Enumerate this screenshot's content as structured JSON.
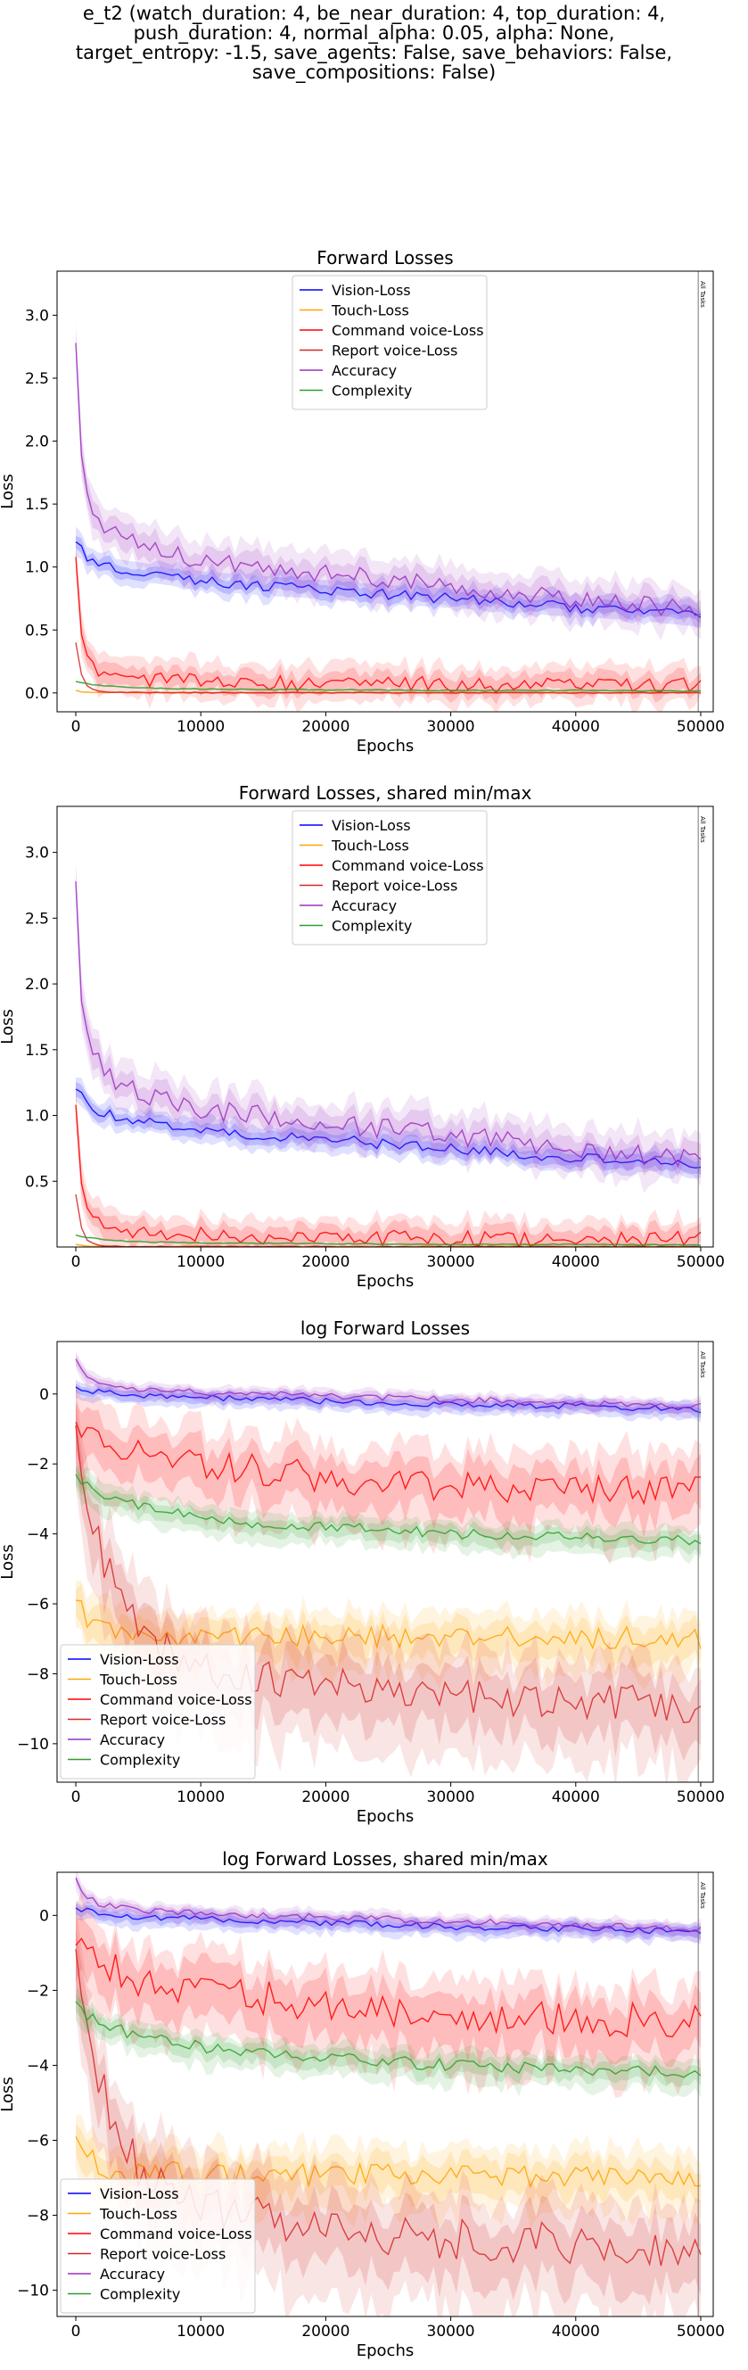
{
  "figure_title": [
    "e_t2 (watch_duration: 4, be_near_duration: 4, top_duration: 4,",
    "push_duration: 4, normal_alpha: 0.05, alpha: None,",
    "target_entropy: -1.5, save_agents: False, save_behaviors: False,",
    "save_compositions: False)"
  ],
  "chart_data": [
    {
      "type": "line",
      "title": "Forward Losses",
      "xlabel": "Epochs",
      "ylabel": "Loss",
      "xlim": [
        -1500,
        51000
      ],
      "ylim": [
        -0.15,
        3.35
      ],
      "xticks": [
        0,
        10000,
        20000,
        30000,
        40000,
        50000
      ],
      "yticks": [
        0.0,
        0.5,
        1.0,
        1.5,
        2.0,
        2.5,
        3.0
      ],
      "ytick_labels": [
        "0.0",
        "0.5",
        "1.0",
        "1.5",
        "2.0",
        "2.5",
        "3.0"
      ],
      "vline": {
        "x": 49800,
        "label": "All Tasks"
      },
      "grid": false,
      "legend": "upper-center",
      "log": false,
      "series": [
        {
          "name": "Vision-Loss",
          "color": "#0000ff",
          "x": [
            0,
            1000,
            3000,
            6000,
            10000,
            15000,
            20000,
            25000,
            30000,
            35000,
            40000,
            45000,
            50000
          ],
          "y": [
            1.2,
            1.07,
            0.99,
            0.95,
            0.89,
            0.85,
            0.82,
            0.78,
            0.75,
            0.71,
            0.68,
            0.65,
            0.6
          ]
        },
        {
          "name": "Touch-Loss",
          "color": "#ffa500",
          "x": [
            0,
            500,
            1000,
            2000,
            5000,
            10000,
            20000,
            30000,
            40000,
            50000
          ],
          "y": [
            0.02,
            0.01,
            0.005,
            0.004,
            0.003,
            0.003,
            0.003,
            0.003,
            0.003,
            0.003
          ]
        },
        {
          "name": "Command voice-Loss",
          "color": "#ff0000",
          "x": [
            0,
            500,
            1000,
            2000,
            3000,
            5000,
            8000,
            10000,
            15000,
            20000,
            25000,
            30000,
            35000,
            40000,
            45000,
            50000
          ],
          "y": [
            1.08,
            0.36,
            0.24,
            0.17,
            0.14,
            0.12,
            0.1,
            0.09,
            0.08,
            0.075,
            0.07,
            0.065,
            0.06,
            0.058,
            0.058,
            0.06
          ]
        },
        {
          "name": "Report voice-Loss",
          "color": "#d62728",
          "x": [
            0,
            500,
            1000,
            2000,
            3000,
            5000,
            10000,
            20000,
            30000,
            40000,
            50000
          ],
          "y": [
            0.4,
            0.12,
            0.04,
            0.01,
            0.005,
            0.003,
            0.002,
            0.001,
            0.001,
            0.001,
            0.001
          ]
        },
        {
          "name": "Accuracy",
          "color": "#9b30c0",
          "x": [
            0,
            500,
            1000,
            2000,
            3000,
            5000,
            8000,
            10000,
            15000,
            20000,
            25000,
            30000,
            35000,
            40000,
            45000,
            50000
          ],
          "y": [
            2.78,
            1.75,
            1.55,
            1.38,
            1.25,
            1.18,
            1.1,
            1.05,
            1.0,
            0.95,
            0.9,
            0.85,
            0.8,
            0.75,
            0.7,
            0.68
          ]
        },
        {
          "name": "Complexity",
          "color": "#2ca02c",
          "x": [
            0,
            1000,
            3000,
            5000,
            10000,
            20000,
            30000,
            40000,
            50000
          ],
          "y": [
            0.09,
            0.07,
            0.05,
            0.04,
            0.03,
            0.025,
            0.02,
            0.02,
            0.015
          ]
        }
      ]
    },
    {
      "type": "line",
      "title": "Forward Losses, shared min/max",
      "xlabel": "Epochs",
      "ylabel": "Loss",
      "xlim": [
        -1500,
        51000
      ],
      "ylim": [
        0.0,
        3.35
      ],
      "xticks": [
        0,
        10000,
        20000,
        30000,
        40000,
        50000
      ],
      "yticks": [
        0.5,
        1.0,
        1.5,
        2.0,
        2.5,
        3.0
      ],
      "ytick_labels": [
        "0.5",
        "1.0",
        "1.5",
        "2.0",
        "2.5",
        "3.0"
      ],
      "vline": {
        "x": 49800,
        "label": "All Tasks"
      },
      "grid": false,
      "legend": "upper-center",
      "log": false,
      "series": [
        {
          "name": "Vision-Loss",
          "color": "#0000ff",
          "x": [
            0,
            1000,
            3000,
            6000,
            10000,
            15000,
            20000,
            25000,
            30000,
            35000,
            40000,
            45000,
            50000
          ],
          "y": [
            1.2,
            1.07,
            0.99,
            0.95,
            0.89,
            0.85,
            0.82,
            0.78,
            0.75,
            0.71,
            0.68,
            0.65,
            0.6
          ]
        },
        {
          "name": "Touch-Loss",
          "color": "#ffa500",
          "x": [
            0,
            500,
            1000,
            2000,
            5000,
            10000,
            20000,
            30000,
            40000,
            50000
          ],
          "y": [
            0.02,
            0.01,
            0.005,
            0.004,
            0.003,
            0.003,
            0.003,
            0.003,
            0.003,
            0.003
          ]
        },
        {
          "name": "Command voice-Loss",
          "color": "#ff0000",
          "x": [
            0,
            500,
            1000,
            2000,
            3000,
            5000,
            8000,
            10000,
            15000,
            20000,
            25000,
            30000,
            35000,
            40000,
            45000,
            50000
          ],
          "y": [
            1.08,
            0.36,
            0.24,
            0.17,
            0.14,
            0.12,
            0.1,
            0.09,
            0.08,
            0.075,
            0.07,
            0.065,
            0.06,
            0.058,
            0.058,
            0.06
          ]
        },
        {
          "name": "Report voice-Loss",
          "color": "#d62728",
          "x": [
            0,
            500,
            1000,
            2000,
            3000,
            5000,
            10000,
            20000,
            30000,
            40000,
            50000
          ],
          "y": [
            0.4,
            0.12,
            0.04,
            0.01,
            0.005,
            0.003,
            0.002,
            0.001,
            0.001,
            0.001,
            0.001
          ]
        },
        {
          "name": "Accuracy",
          "color": "#9b30c0",
          "x": [
            0,
            500,
            1000,
            2000,
            3000,
            5000,
            8000,
            10000,
            15000,
            20000,
            25000,
            30000,
            35000,
            40000,
            45000,
            50000
          ],
          "y": [
            2.78,
            1.75,
            1.55,
            1.38,
            1.25,
            1.18,
            1.1,
            1.05,
            1.0,
            0.95,
            0.9,
            0.85,
            0.8,
            0.75,
            0.7,
            0.68
          ]
        },
        {
          "name": "Complexity",
          "color": "#2ca02c",
          "x": [
            0,
            1000,
            3000,
            5000,
            10000,
            20000,
            30000,
            40000,
            50000
          ],
          "y": [
            0.09,
            0.07,
            0.05,
            0.04,
            0.03,
            0.025,
            0.02,
            0.02,
            0.015
          ]
        }
      ]
    },
    {
      "type": "line",
      "title": "log Forward Losses",
      "xlabel": "Epochs",
      "ylabel": "Loss",
      "xlim": [
        -1500,
        51000
      ],
      "ylim": [
        -11.1,
        1.5
      ],
      "xticks": [
        0,
        10000,
        20000,
        30000,
        40000,
        50000
      ],
      "yticks": [
        0,
        -2,
        -4,
        -6,
        -8,
        -10
      ],
      "ytick_labels": [
        "0",
        "−2",
        "−4",
        "−6",
        "−8",
        "−10"
      ],
      "vline": {
        "x": 49800,
        "label": "All Tasks"
      },
      "grid": false,
      "legend": "lower-left",
      "log": true,
      "series": [
        {
          "name": "Vision-Loss",
          "color": "#0000ff",
          "x": [
            0,
            2000,
            5000,
            10000,
            20000,
            30000,
            40000,
            50000
          ],
          "y": [
            0.2,
            0.05,
            -0.05,
            -0.1,
            -0.2,
            -0.3,
            -0.35,
            -0.45
          ]
        },
        {
          "name": "Touch-Loss",
          "color": "#ffa500",
          "x": [
            0,
            1000,
            2000,
            3000,
            5000,
            10000,
            20000,
            30000,
            40000,
            50000
          ],
          "y": [
            -5.9,
            -6.4,
            -6.7,
            -6.8,
            -6.85,
            -6.9,
            -6.9,
            -6.95,
            -6.95,
            -7.0
          ]
        },
        {
          "name": "Command voice-Loss",
          "color": "#ff0000",
          "x": [
            0,
            1000,
            2000,
            4000,
            6000,
            10000,
            15000,
            20000,
            25000,
            30000,
            35000,
            40000,
            45000,
            50000
          ],
          "y": [
            -0.8,
            -1.1,
            -1.3,
            -1.6,
            -1.8,
            -2.0,
            -2.2,
            -2.4,
            -2.5,
            -2.6,
            -2.7,
            -2.75,
            -2.8,
            -2.8
          ]
        },
        {
          "name": "Report voice-Loss",
          "color": "#d62728",
          "x": [
            0,
            1000,
            2000,
            3000,
            5000,
            8000,
            10000,
            15000,
            20000,
            25000,
            30000,
            35000,
            40000,
            45000,
            50000
          ],
          "y": [
            -0.9,
            -3.0,
            -4.5,
            -5.5,
            -6.8,
            -7.5,
            -7.8,
            -8.1,
            -8.3,
            -8.5,
            -8.6,
            -8.7,
            -8.8,
            -8.9,
            -9.0
          ]
        },
        {
          "name": "Accuracy",
          "color": "#9b30c0",
          "x": [
            0,
            500,
            1000,
            2000,
            5000,
            10000,
            20000,
            30000,
            40000,
            50000
          ],
          "y": [
            1.0,
            0.6,
            0.45,
            0.3,
            0.15,
            0.05,
            -0.05,
            -0.15,
            -0.25,
            -0.35
          ]
        },
        {
          "name": "Complexity",
          "color": "#2ca02c",
          "x": [
            0,
            1000,
            3000,
            5000,
            10000,
            15000,
            20000,
            25000,
            30000,
            35000,
            40000,
            45000,
            50000
          ],
          "y": [
            -2.3,
            -2.7,
            -3.0,
            -3.2,
            -3.5,
            -3.7,
            -3.8,
            -3.9,
            -4.0,
            -4.05,
            -4.1,
            -4.15,
            -4.2
          ]
        }
      ]
    },
    {
      "type": "line",
      "title": "log Forward Losses, shared min/max",
      "xlabel": "Epochs",
      "ylabel": "Loss",
      "xlim": [
        -1500,
        51000
      ],
      "ylim": [
        -10.7,
        1.15
      ],
      "xticks": [
        0,
        10000,
        20000,
        30000,
        40000,
        50000
      ],
      "yticks": [
        0,
        -2,
        -4,
        -6,
        -8,
        -10
      ],
      "ytick_labels": [
        "0",
        "−2",
        "−4",
        "−6",
        "−8",
        "−10"
      ],
      "vline": {
        "x": 49800,
        "label": "All Tasks"
      },
      "grid": false,
      "legend": "lower-left",
      "log": true,
      "series": [
        {
          "name": "Vision-Loss",
          "color": "#0000ff",
          "x": [
            0,
            2000,
            5000,
            10000,
            20000,
            30000,
            40000,
            50000
          ],
          "y": [
            0.2,
            0.05,
            -0.05,
            -0.1,
            -0.2,
            -0.3,
            -0.35,
            -0.45
          ]
        },
        {
          "name": "Touch-Loss",
          "color": "#ffa500",
          "x": [
            0,
            1000,
            2000,
            3000,
            5000,
            10000,
            20000,
            30000,
            40000,
            50000
          ],
          "y": [
            -5.9,
            -6.4,
            -6.7,
            -6.8,
            -6.85,
            -6.9,
            -6.9,
            -6.95,
            -6.95,
            -7.0
          ]
        },
        {
          "name": "Command voice-Loss",
          "color": "#ff0000",
          "x": [
            0,
            1000,
            2000,
            4000,
            6000,
            10000,
            15000,
            20000,
            25000,
            30000,
            35000,
            40000,
            45000,
            50000
          ],
          "y": [
            -0.8,
            -1.1,
            -1.3,
            -1.6,
            -1.8,
            -2.0,
            -2.2,
            -2.4,
            -2.5,
            -2.6,
            -2.7,
            -2.75,
            -2.8,
            -2.8
          ]
        },
        {
          "name": "Report voice-Loss",
          "color": "#d62728",
          "x": [
            0,
            1000,
            2000,
            3000,
            5000,
            8000,
            10000,
            15000,
            20000,
            25000,
            30000,
            35000,
            40000,
            45000,
            50000
          ],
          "y": [
            -0.9,
            -3.0,
            -4.5,
            -5.5,
            -6.8,
            -7.5,
            -7.8,
            -8.1,
            -8.3,
            -8.5,
            -8.6,
            -8.7,
            -8.8,
            -8.9,
            -9.0
          ]
        },
        {
          "name": "Accuracy",
          "color": "#9b30c0",
          "x": [
            0,
            500,
            1000,
            2000,
            5000,
            10000,
            20000,
            30000,
            40000,
            50000
          ],
          "y": [
            1.0,
            0.6,
            0.45,
            0.3,
            0.15,
            0.05,
            -0.05,
            -0.15,
            -0.25,
            -0.35
          ]
        },
        {
          "name": "Complexity",
          "color": "#2ca02c",
          "x": [
            0,
            1000,
            3000,
            5000,
            10000,
            15000,
            20000,
            25000,
            30000,
            35000,
            40000,
            45000,
            50000
          ],
          "y": [
            -2.3,
            -2.7,
            -3.0,
            -3.2,
            -3.5,
            -3.7,
            -3.8,
            -3.9,
            -4.0,
            -4.05,
            -4.1,
            -4.15,
            -4.2
          ]
        }
      ]
    }
  ]
}
